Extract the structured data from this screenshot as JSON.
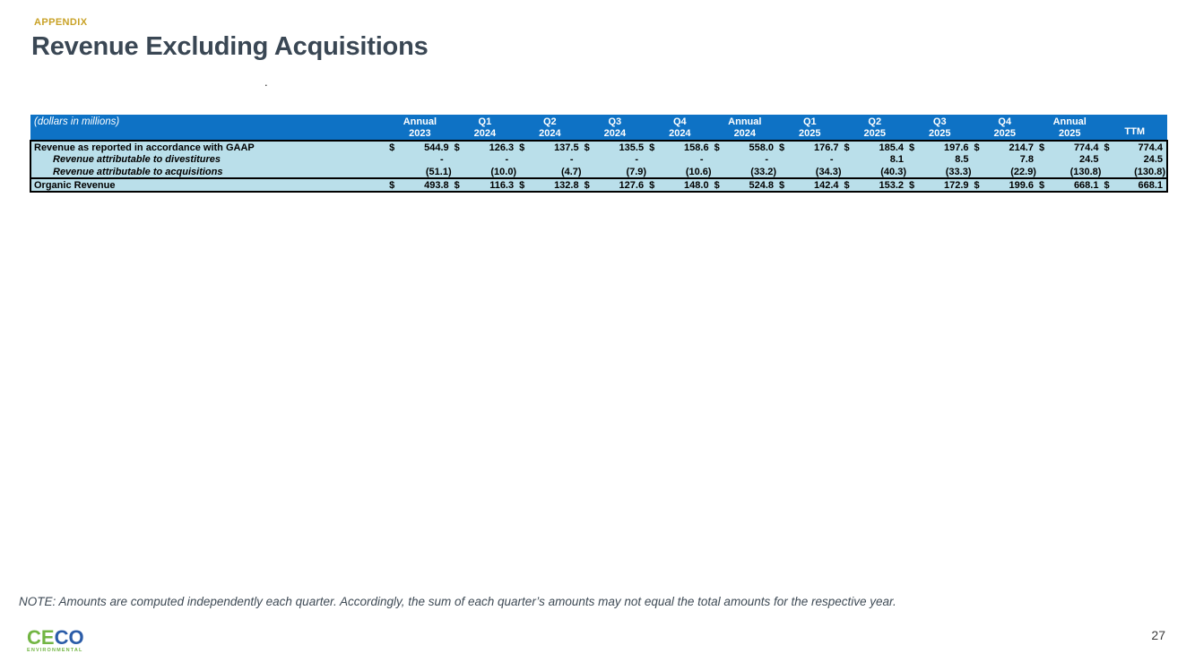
{
  "slide": {
    "eyebrow": "APPENDIX",
    "title": "Revenue Excluding Acquisitions",
    "stray_mark": ".",
    "note": "NOTE: Amounts are computed independently each quarter. Accordingly, the sum of each quarter’s amounts may not equal the total amounts for the respective year.",
    "page_number": "27"
  },
  "logo": {
    "word_part_green": "CE",
    "word_part_blue": "CO",
    "tagline": "ENVIRONMENTAL",
    "green": "#72B543",
    "blue": "#2B5CA8"
  },
  "table": {
    "caption": "(dollars in millions)",
    "currency_symbol": "$",
    "colors": {
      "header_bg": "#0E72C5",
      "header_text": "#FFFFFF",
      "body_bg": "#BADFEA",
      "border": "#000000"
    },
    "columns": [
      {
        "line1": "Annual",
        "line2": "2023"
      },
      {
        "line1": "Q1",
        "line2": "2024"
      },
      {
        "line1": "Q2",
        "line2": "2024"
      },
      {
        "line1": "Q3",
        "line2": "2024"
      },
      {
        "line1": "Q4",
        "line2": "2024"
      },
      {
        "line1": "Annual",
        "line2": "2024"
      },
      {
        "line1": "Q1",
        "line2": "2025"
      },
      {
        "line1": "Q2",
        "line2": "2025"
      },
      {
        "line1": "Q3",
        "line2": "2025"
      },
      {
        "line1": "Q4",
        "line2": "2025"
      },
      {
        "line1": "Annual",
        "line2": "2025"
      },
      {
        "line1": "",
        "line2": "TTM"
      }
    ],
    "rows": [
      {
        "label": "Revenue as reported in accordance with GAAP",
        "style": "gaap",
        "dollar": true,
        "values": [
          "544.9",
          "126.3",
          "137.5",
          "135.5",
          "158.6",
          "558.0",
          "176.7",
          "185.4",
          "197.6",
          "214.7",
          "774.4",
          "774.4"
        ]
      },
      {
        "label": "Revenue attributable to divestitures",
        "style": "sub",
        "dollar": false,
        "values": [
          "-",
          "-",
          "-",
          "-",
          "-",
          "-",
          "-",
          "8.1",
          "8.5",
          "7.8",
          "24.5",
          "24.5"
        ]
      },
      {
        "label": "Revenue attributable to acquisitions",
        "style": "sub",
        "dollar": false,
        "values": [
          "(51.1)",
          "(10.0)",
          "(4.7)",
          "(7.9)",
          "(10.6)",
          "(33.2)",
          "(34.3)",
          "(40.3)",
          "(33.3)",
          "(22.9)",
          "(130.8)",
          "(130.8)"
        ]
      },
      {
        "label": "Organic Revenue",
        "style": "total",
        "dollar": true,
        "values": [
          "493.8",
          "116.3",
          "132.8",
          "127.6",
          "148.0",
          "524.8",
          "142.4",
          "153.2",
          "172.9",
          "199.6",
          "668.1",
          "668.1"
        ]
      }
    ]
  }
}
